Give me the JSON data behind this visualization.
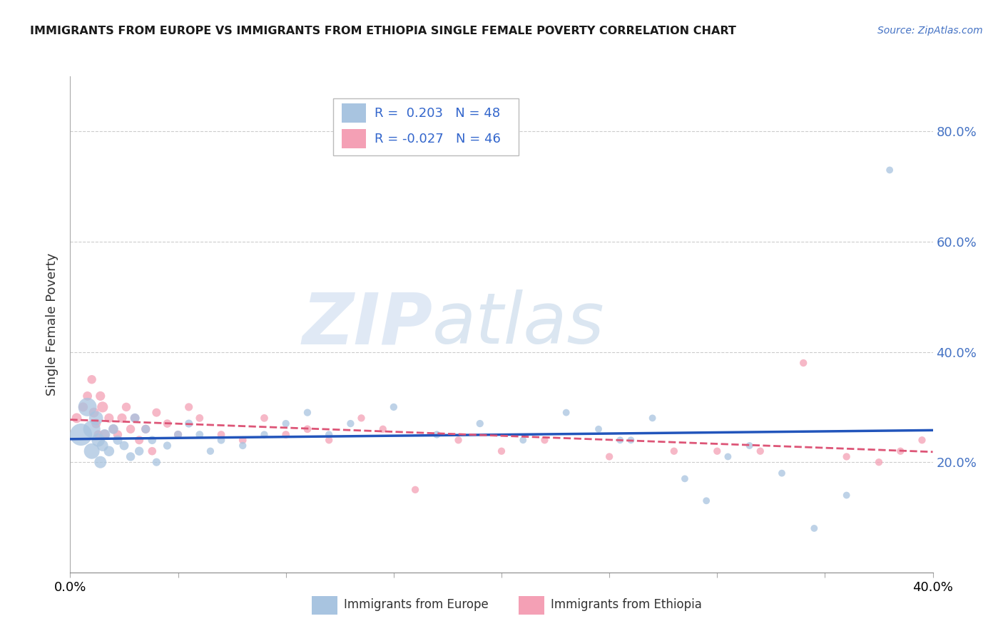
{
  "title": "IMMIGRANTS FROM EUROPE VS IMMIGRANTS FROM ETHIOPIA SINGLE FEMALE POVERTY CORRELATION CHART",
  "source": "Source: ZipAtlas.com",
  "ylabel": "Single Female Poverty",
  "ytick_labels": [
    "20.0%",
    "40.0%",
    "60.0%",
    "80.0%"
  ],
  "ytick_values": [
    0.2,
    0.4,
    0.6,
    0.8
  ],
  "xlim": [
    0.0,
    0.4
  ],
  "ylim": [
    0.0,
    0.9
  ],
  "legend_europe_R": "0.203",
  "legend_europe_N": "48",
  "legend_ethiopia_R": "-0.027",
  "legend_ethiopia_N": "46",
  "europe_color": "#a8c4e0",
  "ethiopia_color": "#f4a0b5",
  "europe_line_color": "#2255bb",
  "ethiopia_line_color": "#dd5577",
  "watermark_zip": "ZIP",
  "watermark_atlas": "atlas",
  "europe_scatter_x": [
    0.005,
    0.008,
    0.01,
    0.01,
    0.012,
    0.013,
    0.014,
    0.015,
    0.016,
    0.018,
    0.02,
    0.022,
    0.025,
    0.028,
    0.03,
    0.032,
    0.035,
    0.038,
    0.04,
    0.045,
    0.05,
    0.055,
    0.06,
    0.065,
    0.07,
    0.08,
    0.09,
    0.1,
    0.11,
    0.12,
    0.13,
    0.15,
    0.17,
    0.19,
    0.21,
    0.23,
    0.245,
    0.255,
    0.26,
    0.27,
    0.285,
    0.295,
    0.305,
    0.315,
    0.33,
    0.345,
    0.36,
    0.38
  ],
  "europe_scatter_y": [
    0.25,
    0.3,
    0.26,
    0.22,
    0.28,
    0.24,
    0.2,
    0.23,
    0.25,
    0.22,
    0.26,
    0.24,
    0.23,
    0.21,
    0.28,
    0.22,
    0.26,
    0.24,
    0.2,
    0.23,
    0.25,
    0.27,
    0.25,
    0.22,
    0.24,
    0.23,
    0.25,
    0.27,
    0.29,
    0.25,
    0.27,
    0.3,
    0.25,
    0.27,
    0.24,
    0.29,
    0.26,
    0.24,
    0.24,
    0.28,
    0.17,
    0.13,
    0.21,
    0.23,
    0.18,
    0.08,
    0.14,
    0.73
  ],
  "europe_scatter_size": [
    500,
    350,
    300,
    250,
    200,
    180,
    150,
    130,
    120,
    110,
    100,
    90,
    85,
    80,
    90,
    80,
    75,
    70,
    65,
    65,
    65,
    65,
    60,
    55,
    60,
    55,
    55,
    55,
    55,
    55,
    55,
    55,
    55,
    55,
    50,
    50,
    50,
    50,
    50,
    50,
    50,
    50,
    50,
    50,
    50,
    50,
    50,
    50
  ],
  "ethiopia_scatter_x": [
    0.003,
    0.006,
    0.008,
    0.01,
    0.011,
    0.012,
    0.013,
    0.014,
    0.015,
    0.016,
    0.018,
    0.02,
    0.022,
    0.024,
    0.026,
    0.028,
    0.03,
    0.032,
    0.035,
    0.038,
    0.04,
    0.045,
    0.05,
    0.055,
    0.06,
    0.07,
    0.08,
    0.09,
    0.1,
    0.11,
    0.12,
    0.135,
    0.145,
    0.16,
    0.18,
    0.2,
    0.22,
    0.25,
    0.28,
    0.3,
    0.32,
    0.34,
    0.36,
    0.375,
    0.385,
    0.395
  ],
  "ethiopia_scatter_y": [
    0.28,
    0.3,
    0.32,
    0.35,
    0.29,
    0.27,
    0.25,
    0.32,
    0.3,
    0.25,
    0.28,
    0.26,
    0.25,
    0.28,
    0.3,
    0.26,
    0.28,
    0.24,
    0.26,
    0.22,
    0.29,
    0.27,
    0.25,
    0.3,
    0.28,
    0.25,
    0.24,
    0.28,
    0.25,
    0.26,
    0.24,
    0.28,
    0.26,
    0.15,
    0.24,
    0.22,
    0.24,
    0.21,
    0.22,
    0.22,
    0.22,
    0.38,
    0.21,
    0.2,
    0.22,
    0.24
  ],
  "ethiopia_scatter_size": [
    100,
    90,
    85,
    80,
    100,
    90,
    80,
    90,
    120,
    100,
    90,
    85,
    80,
    90,
    80,
    80,
    80,
    75,
    80,
    70,
    75,
    70,
    65,
    65,
    60,
    60,
    60,
    60,
    60,
    60,
    55,
    55,
    55,
    55,
    55,
    55,
    55,
    55,
    55,
    55,
    55,
    55,
    55,
    55,
    55,
    55
  ]
}
